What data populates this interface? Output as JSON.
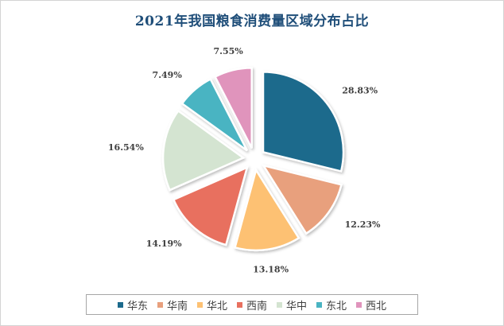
{
  "chart_data": {
    "type": "pie",
    "title": "2021年我国粮食消费量区域分布占比",
    "categories": [
      "华东",
      "华南",
      "华北",
      "西南",
      "华中",
      "东北",
      "西北"
    ],
    "values": [
      28.83,
      12.23,
      13.18,
      14.19,
      16.54,
      7.49,
      7.55
    ],
    "value_labels": [
      "28.83%",
      "12.23%",
      "13.18%",
      "14.19%",
      "16.54%",
      "7.49%",
      "7.55%"
    ],
    "colors": [
      "#1b6a8c",
      "#e8a07d",
      "#fdc173",
      "#e8705f",
      "#d4e4d1",
      "#4ab4c2",
      "#e094bc"
    ],
    "start_angle": "12 o'clock",
    "direction": "clockwise",
    "exploded": true,
    "legend_position": "bottom"
  }
}
